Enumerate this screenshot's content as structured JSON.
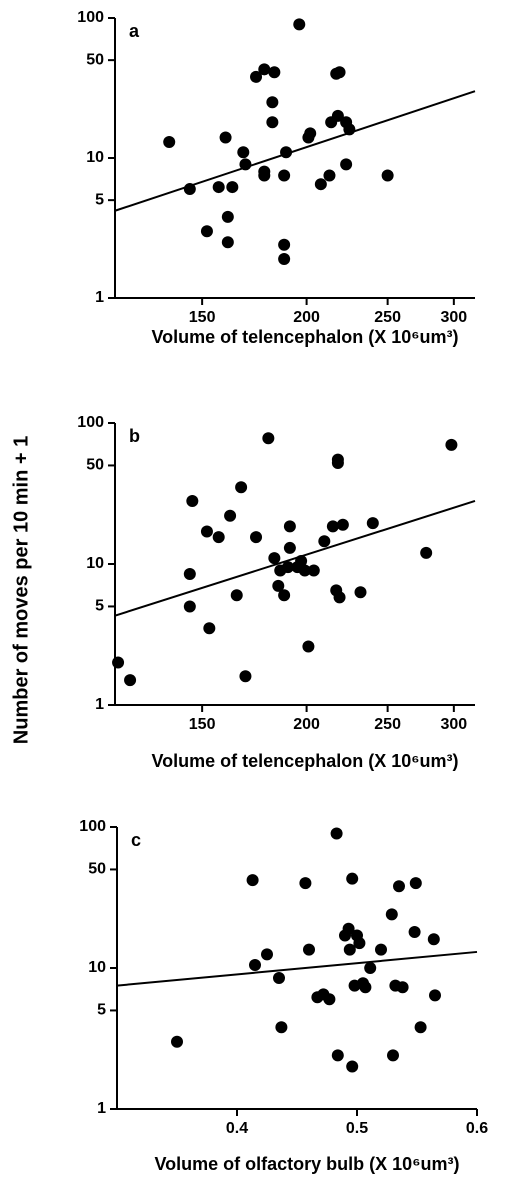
{
  "ylabel": "Number of moves per 10 min + 1",
  "chart_data": [
    {
      "type": "scatter",
      "panel": "a",
      "xlabel": "Volume of telencephalon (X 10⁶um³)",
      "xlog": true,
      "ylog": true,
      "color": "#000000",
      "xlim": [
        118,
        318
      ],
      "ylim": [
        1,
        100
      ],
      "xticks": [
        150,
        200,
        250,
        300
      ],
      "yticks": [
        1,
        5,
        10,
        50,
        100
      ],
      "x": [
        137,
        145,
        152,
        157,
        160,
        161,
        161,
        163,
        168,
        169,
        174,
        178,
        178,
        178,
        182,
        182,
        183,
        188,
        188,
        188,
        189,
        196,
        201,
        202,
        208,
        213,
        214,
        217,
        218,
        219,
        223,
        223,
        225,
        250
      ],
      "values": [
        13,
        6,
        3,
        6.2,
        14,
        3.8,
        2.5,
        6.2,
        11,
        9,
        38,
        43,
        7.5,
        8,
        25,
        18,
        41,
        2.4,
        1.9,
        7.5,
        11,
        90,
        14,
        15,
        6.5,
        7.5,
        18,
        40,
        20,
        41,
        9,
        18,
        16,
        7.5
      ],
      "fit": {
        "x": [
          118,
          318
        ],
        "y": [
          4.2,
          30
        ]
      }
    },
    {
      "type": "scatter",
      "panel": "b",
      "xlabel": "Volume of telencephalon (X 10⁶um³)",
      "xlog": true,
      "ylog": true,
      "color": "#000000",
      "xlim": [
        118,
        318
      ],
      "ylim": [
        1,
        100
      ],
      "xticks": [
        150,
        200,
        250,
        300
      ],
      "yticks": [
        1,
        5,
        10,
        50,
        100
      ],
      "x": [
        119,
        123,
        145,
        145,
        146,
        152,
        153,
        157,
        162,
        165,
        167,
        169,
        174,
        180,
        183,
        185,
        186,
        188,
        190,
        191,
        191,
        195,
        197,
        199,
        201,
        204,
        210,
        215,
        217,
        218,
        218,
        219,
        221,
        232,
        240,
        278,
        298
      ],
      "values": [
        2,
        1.5,
        5,
        8.5,
        28,
        17,
        3.5,
        15.5,
        22,
        6,
        35,
        1.6,
        15.5,
        78,
        11,
        7,
        9,
        6,
        9.5,
        13,
        18.5,
        9.5,
        10.5,
        9,
        2.6,
        9,
        14.5,
        18.5,
        6.5,
        52,
        55,
        5.8,
        19,
        6.3,
        19.5,
        12,
        70
      ],
      "fit": {
        "x": [
          118,
          318
        ],
        "y": [
          4.3,
          28
        ]
      }
    },
    {
      "type": "scatter",
      "panel": "c",
      "xlabel": "Volume of olfactory bulb (X 10⁶um³)",
      "xlog": false,
      "ylog": true,
      "color": "#000000",
      "xlim": [
        0.3,
        0.6
      ],
      "ylim": [
        1,
        100
      ],
      "xticks": [
        0.4,
        0.5,
        0.6
      ],
      "yticks": [
        1,
        5,
        10,
        50,
        100
      ],
      "x": [
        0.35,
        0.413,
        0.415,
        0.425,
        0.435,
        0.437,
        0.457,
        0.46,
        0.467,
        0.472,
        0.477,
        0.483,
        0.484,
        0.49,
        0.493,
        0.494,
        0.496,
        0.496,
        0.498,
        0.5,
        0.502,
        0.505,
        0.507,
        0.511,
        0.52,
        0.529,
        0.53,
        0.532,
        0.535,
        0.538,
        0.548,
        0.549,
        0.553,
        0.564,
        0.565
      ],
      "values": [
        3,
        42,
        10.5,
        12.5,
        8.5,
        3.8,
        40,
        13.5,
        6.2,
        6.5,
        6,
        90,
        2.4,
        17,
        19,
        13.5,
        2,
        43,
        7.5,
        17,
        15,
        7.8,
        7.3,
        10,
        13.5,
        24,
        2.4,
        7.5,
        38,
        7.3,
        18,
        40,
        3.8,
        16,
        6.4
      ],
      "fit": {
        "x": [
          0.3,
          0.6
        ],
        "y": [
          7.5,
          13
        ]
      }
    }
  ]
}
